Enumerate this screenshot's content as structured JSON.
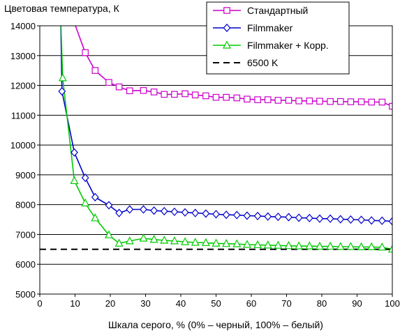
{
  "chart_data": {
    "type": "line",
    "ylabel": "Цветовая температура, К",
    "xlabel": "Шкала серого, % (0% – черный, 100% – белый)",
    "xlim": [
      0,
      100
    ],
    "ylim": [
      5000,
      14000
    ],
    "x_ticks": [
      0,
      10,
      20,
      30,
      40,
      50,
      60,
      70,
      80,
      90,
      100
    ],
    "x_tick_labels": [
      "0",
      "10",
      "20",
      "30",
      "40",
      "50",
      "60",
      "70",
      "80",
      "90",
      "100"
    ],
    "y_ticks": [
      5000,
      6000,
      7000,
      8000,
      9000,
      10000,
      11000,
      12000,
      13000,
      14000
    ],
    "y_tick_labels": [
      "5000",
      "6000",
      "7000",
      "8000",
      "9000",
      "10000",
      "11000",
      "12000",
      "13000",
      "14000"
    ],
    "grid": true,
    "legend_position": "top-right",
    "series": [
      {
        "name": "Стандартный",
        "color": "#cc00cc",
        "marker": "square",
        "line_style": "solid",
        "x": [
          5.9,
          9.8,
          12.9,
          15.7,
          19.6,
          22.5,
          25.5,
          29.4,
          32.4,
          35.3,
          38.2,
          41.2,
          44.1,
          47.1,
          50,
          52.9,
          55.9,
          58.8,
          61.8,
          64.7,
          67.6,
          70.6,
          73.5,
          76.5,
          79.4,
          82.4,
          85.3,
          88.2,
          91.2,
          94.1,
          97.1,
          100
        ],
        "y": [
          14400,
          14100,
          13100,
          12500,
          12100,
          11950,
          11820,
          11830,
          11780,
          11700,
          11700,
          11720,
          11680,
          11650,
          11600,
          11600,
          11580,
          11540,
          11520,
          11520,
          11500,
          11500,
          11480,
          11480,
          11470,
          11460,
          11460,
          11450,
          11450,
          11440,
          11440,
          11300
        ]
      },
      {
        "name": "Filmmaker",
        "color": "#0000cc",
        "marker": "diamond",
        "line_style": "solid",
        "x": [
          5.9,
          6.3,
          9.8,
          12.9,
          15.7,
          19.6,
          22.5,
          25.5,
          29.4,
          32.4,
          35.3,
          38.2,
          41.2,
          44.1,
          47.1,
          50,
          52.9,
          55.9,
          58.8,
          61.8,
          64.7,
          67.6,
          70.6,
          73.5,
          76.5,
          79.4,
          82.4,
          85.3,
          88.2,
          91.2,
          94.1,
          97.1,
          100
        ],
        "y": [
          14400,
          11800,
          9750,
          8900,
          8250,
          7980,
          7720,
          7840,
          7840,
          7800,
          7780,
          7760,
          7740,
          7720,
          7700,
          7680,
          7660,
          7650,
          7630,
          7620,
          7600,
          7590,
          7580,
          7560,
          7550,
          7530,
          7530,
          7510,
          7500,
          7490,
          7470,
          7460,
          7440
        ]
      },
      {
        "name": "Filmmaker + Корр.",
        "color": "#00cc00",
        "marker": "triangle",
        "line_style": "solid",
        "x": [
          5.9,
          6.5,
          9.8,
          12.9,
          15.7,
          19.6,
          22.5,
          25.5,
          29.4,
          32.4,
          35.3,
          38.2,
          41.2,
          44.1,
          47.1,
          50,
          52.9,
          55.9,
          58.8,
          61.8,
          64.7,
          67.6,
          70.6,
          73.5,
          76.5,
          79.4,
          82.4,
          85.3,
          88.2,
          91.2,
          94.1,
          97.1,
          100
        ],
        "y": [
          14400,
          12250,
          8800,
          8050,
          7550,
          6980,
          6700,
          6780,
          6870,
          6830,
          6800,
          6780,
          6750,
          6730,
          6720,
          6700,
          6690,
          6680,
          6660,
          6650,
          6640,
          6630,
          6620,
          6610,
          6610,
          6600,
          6600,
          6590,
          6590,
          6580,
          6580,
          6570,
          6500
        ]
      },
      {
        "name": "6500 K",
        "color": "#000000",
        "marker": "none",
        "line_style": "dashed",
        "x": [
          0,
          100
        ],
        "y": [
          6500,
          6500
        ]
      }
    ]
  }
}
